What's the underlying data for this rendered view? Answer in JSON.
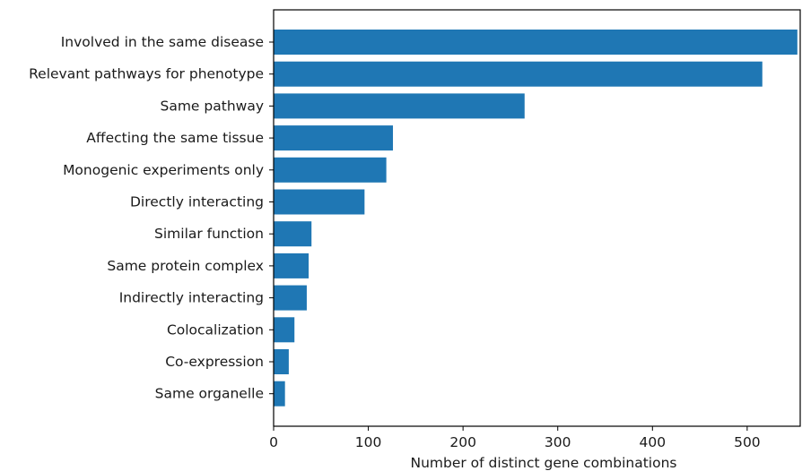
{
  "chart_data": {
    "type": "bar",
    "orientation": "horizontal",
    "title": "",
    "xlabel": "Number of distinct gene combinations",
    "ylabel": "",
    "xlim": [
      0,
      556
    ],
    "xticks": [
      0,
      100,
      200,
      300,
      400,
      500
    ],
    "grid": false,
    "bar_color": "#1f77b4",
    "categories": [
      "Involved in the same disease",
      "Relevant pathways for phenotype",
      "Same pathway",
      "Affecting the same tissue",
      "Monogenic experiments only",
      "Directly interacting",
      "Similar function",
      "Same protein complex",
      "Indirectly interacting",
      "Colocalization",
      "Co-expression",
      "Same organelle"
    ],
    "values": [
      553,
      516,
      265,
      126,
      119,
      96,
      40,
      37,
      35,
      22,
      16,
      12
    ]
  }
}
